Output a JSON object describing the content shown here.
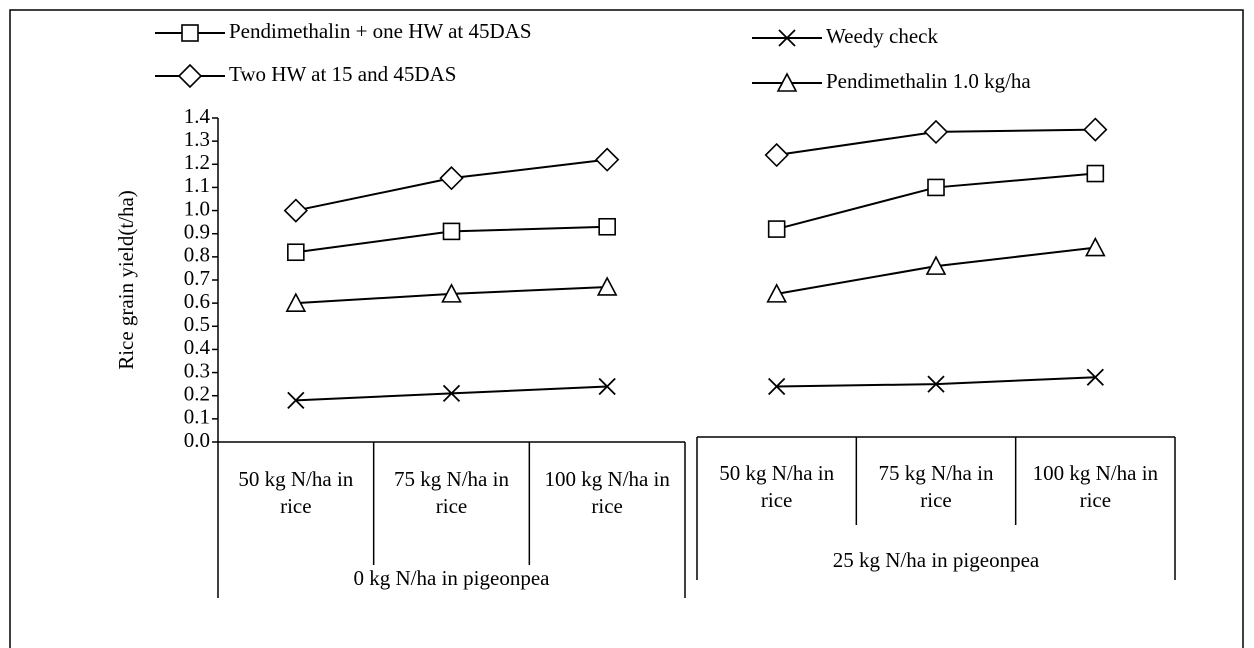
{
  "chart_data": {
    "type": "line",
    "y_label": "Rice grain yield(t/ha)",
    "ylim": [
      0,
      1.4
    ],
    "yticks": [
      {
        "value": 0,
        "label": "0.0"
      },
      0.1,
      0.2,
      0.3,
      0.4,
      0.5,
      0.6,
      0.7,
      0.8,
      0.9,
      {
        "value": 1,
        "label": "1.0"
      },
      1.1,
      1.2,
      1.3,
      1.4
    ],
    "categories": [
      "50 kg N/ha in rice",
      "75 kg N/ha in rice",
      "100 kg N/ha in rice",
      "50 kg N/ha in rice",
      "75 kg N/ha in rice",
      "100 kg N/ha in rice"
    ],
    "groups": [
      "0 kg N/ha in pigeonpea",
      "25 kg N/ha in pigeonpea"
    ],
    "series": [
      {
        "name": "Pendimethalin + one HW at 45DAS",
        "marker": "square",
        "color": "#000000",
        "values": [
          0.82,
          0.91,
          0.93,
          0.92,
          1.1,
          1.16
        ]
      },
      {
        "name": "Two HW at 15 and 45DAS",
        "marker": "diamond",
        "color": "#000000",
        "values": [
          1.0,
          1.14,
          1.22,
          1.24,
          1.34,
          1.35
        ]
      },
      {
        "name": "Weedy check",
        "marker": "x",
        "color": "#000000",
        "values": [
          0.18,
          0.21,
          0.24,
          0.24,
          0.25,
          0.28
        ]
      },
      {
        "name": "Pendimethalin 1.0 kg/ha",
        "marker": "triangle",
        "color": "#000000",
        "values": [
          0.6,
          0.64,
          0.67,
          0.64,
          0.76,
          0.84
        ]
      }
    ]
  }
}
